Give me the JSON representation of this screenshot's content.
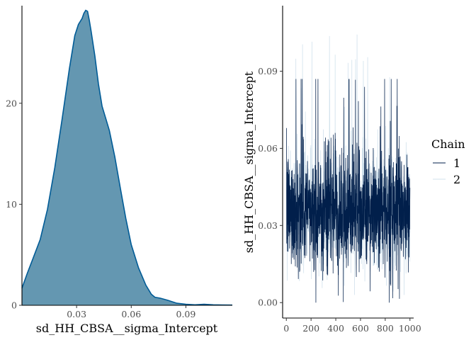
{
  "chart_data": [
    {
      "type": "area",
      "xlabel": "sd_HH_CBSA__sigma_Intercept",
      "ylabel": "",
      "xlim": [
        0.0,
        0.1155
      ],
      "ylim": [
        0,
        29.8
      ],
      "x_ticks": [
        0.03,
        0.06,
        0.09
      ],
      "x_tick_labels": [
        "0.03",
        "0.06",
        "0.09"
      ],
      "y_ticks": [
        0,
        10,
        20
      ],
      "y_tick_labels": [
        "0",
        "10",
        "20"
      ],
      "grid": false,
      "fill_color": "#6497b1",
      "line_color": "#005b96",
      "x": [
        0.0,
        0.003,
        0.006,
        0.01,
        0.014,
        0.018,
        0.022,
        0.026,
        0.029,
        0.031,
        0.033,
        0.034,
        0.035,
        0.036,
        0.037,
        0.038,
        0.04,
        0.042,
        0.044,
        0.046,
        0.048,
        0.051,
        0.054,
        0.057,
        0.06,
        0.064,
        0.068,
        0.071,
        0.073,
        0.076,
        0.08,
        0.085,
        0.09,
        0.095,
        0.1,
        0.105,
        0.11,
        0.1155
      ],
      "density": [
        1.7,
        3.2,
        4.6,
        6.5,
        9.5,
        13.6,
        18.4,
        23.4,
        26.7,
        27.8,
        28.4,
        28.9,
        29.2,
        29.1,
        28.2,
        27.1,
        24.7,
        21.9,
        19.7,
        18.5,
        17.3,
        14.7,
        11.6,
        8.6,
        6.0,
        3.7,
        2.0,
        1.1,
        0.8,
        0.7,
        0.5,
        0.2,
        0.1,
        0.05,
        0.1,
        0.05,
        0.03,
        0.02
      ]
    },
    {
      "type": "line",
      "xlabel": "",
      "ylabel": "sd_HH_CBSA__sigma_Intercept",
      "xlim": [
        -30,
        1030
      ],
      "ylim": [
        -0.006,
        0.1155
      ],
      "x_ticks": [
        0,
        200,
        400,
        600,
        800,
        1000
      ],
      "x_tick_labels": [
        "0",
        "200",
        "400",
        "600",
        "800",
        "1000"
      ],
      "y_ticks": [
        0.0,
        0.03,
        0.06,
        0.09
      ],
      "y_tick_labels": [
        "0.00",
        "0.03",
        "0.06",
        "0.09"
      ],
      "grid": false,
      "legend": {
        "title": "Chain",
        "position": "right",
        "entries": [
          {
            "label": "1",
            "color": "#011f4b"
          },
          {
            "label": "2",
            "color": "#d1e1ec"
          }
        ]
      },
      "iterations": [
        1,
        1000
      ],
      "series": [
        {
          "name": "1",
          "color": "#011f4b",
          "mean": 0.036,
          "sd": 0.0115,
          "min": 0.0,
          "max": 0.087
        },
        {
          "name": "2",
          "color": "#d1e1ec",
          "mean": 0.036,
          "sd": 0.0118,
          "min": 0.003,
          "max": 0.113
        }
      ]
    }
  ]
}
